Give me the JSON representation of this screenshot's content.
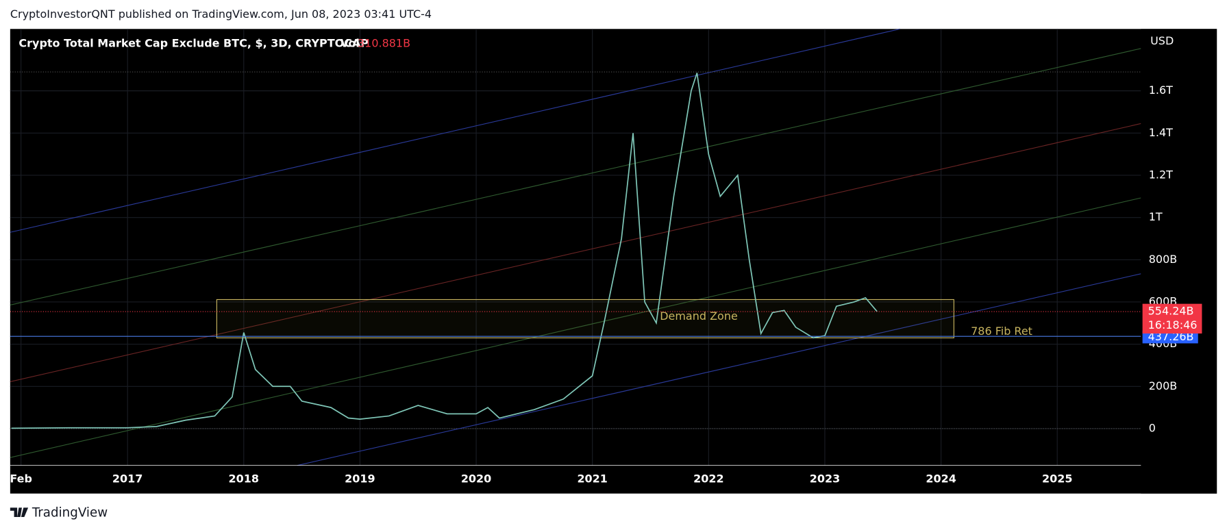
{
  "header": {
    "text": "CryptoInvestorQNT published on TradingView.com, Jun 08, 2023 03:41 UTC-4"
  },
  "chart_data": {
    "type": "line",
    "title": "Crypto Total Market Cap Exclude BTC, $, 3D, CRYPTOCAP",
    "volume_label": "Vol",
    "volume": "310.881B",
    "currency": "USD",
    "color": "#7fc7b8",
    "x": [
      2016.0,
      2016.5,
      2017.0,
      2017.25,
      2017.5,
      2017.75,
      2017.9,
      2018.0,
      2018.1,
      2018.25,
      2018.4,
      2018.5,
      2018.75,
      2018.9,
      2019.0,
      2019.25,
      2019.5,
      2019.75,
      2020.0,
      2020.1,
      2020.2,
      2020.5,
      2020.75,
      2021.0,
      2021.1,
      2021.25,
      2021.35,
      2021.45,
      2021.55,
      2021.7,
      2021.85,
      2021.9,
      2022.0,
      2022.1,
      2022.25,
      2022.35,
      2022.45,
      2022.55,
      2022.65,
      2022.75,
      2022.9,
      2023.0,
      2023.1,
      2023.25,
      2023.35,
      2023.45
    ],
    "values": [
      2,
      4,
      4,
      10,
      40,
      60,
      150,
      455,
      280,
      200,
      200,
      130,
      100,
      50,
      45,
      60,
      110,
      70,
      70,
      100,
      50,
      90,
      140,
      250,
      500,
      900,
      1400,
      600,
      500,
      1100,
      1600,
      1685,
      1300,
      1100,
      1200,
      800,
      450,
      550,
      560,
      480,
      430,
      440,
      580,
      600,
      620,
      554.24
    ],
    "xlim": [
      2015.99,
      2025.72
    ],
    "xticks": [
      {
        "value": 2016.083,
        "label": "Feb"
      },
      2017,
      2018,
      2019,
      2020,
      2021,
      2022,
      2023,
      2024,
      2025
    ],
    "ylim": [
      -174,
      1893
    ],
    "yticks": [
      0,
      {
        "value": 200,
        "label": "200B"
      },
      {
        "value": 400,
        "label": "400B"
      },
      {
        "value": 600,
        "label": "600B"
      },
      {
        "value": 800,
        "label": "800B"
      },
      {
        "value": 1000,
        "label": "1T"
      },
      {
        "value": 1200,
        "label": "1.2T"
      },
      {
        "value": 1400,
        "label": "1.4T"
      },
      {
        "value": 1600,
        "label": "1.6T"
      }
    ],
    "grid": true,
    "price_label": {
      "value": 554.24,
      "label": "554.24B"
    },
    "countdown": "16:18:46",
    "support_label": {
      "value": 437.26,
      "label": "437.26B"
    },
    "annotations": [
      "Demand Zone",
      "786 Fib Ret"
    ]
  },
  "footer": {
    "brand": "TradingView"
  }
}
